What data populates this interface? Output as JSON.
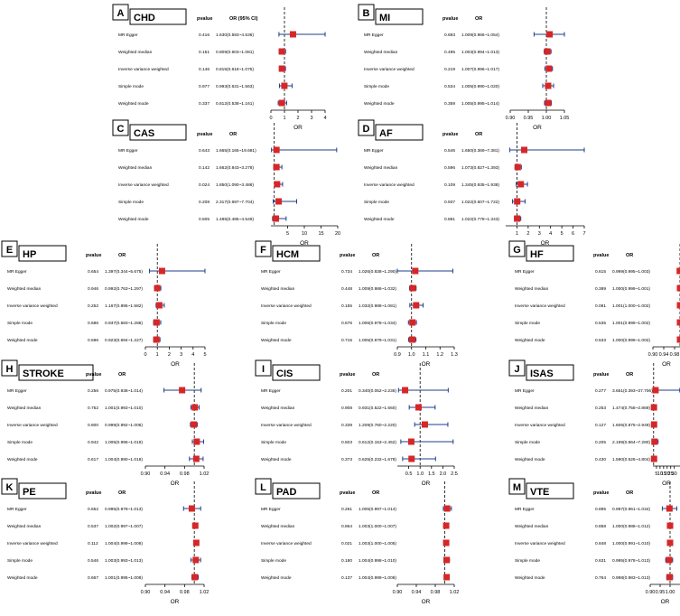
{
  "style": {
    "marker_color": "#d62728",
    "ci_color": "#1f3c88",
    "ref_line_color": "#000000",
    "box_border": "#000000"
  },
  "headers": {
    "pvalue": "pvalue",
    "or": "OR",
    "or_ci": "OR (95% CI)"
  },
  "chart_data": [
    {
      "type": "forest",
      "panel": "A",
      "title": "CHD",
      "xlabel": "OR",
      "or_header": "OR (95% CI)",
      "xlim": [
        0,
        4
      ],
      "ticks": [
        "0",
        "1",
        "2",
        "3",
        "4"
      ],
      "tick_values": [
        0,
        1,
        2,
        3,
        4
      ],
      "ref": 1,
      "rows": [
        {
          "method": "MR Egger",
          "pvalue": "0.416",
          "or_text": "1.630(0.593~4.536)",
          "or": 1.63,
          "lo": 0.593,
          "hi": 4.536
        },
        {
          "method": "Weighted median",
          "pvalue": "0.151",
          "or_text": "0.809(0.603~1.081)",
          "or": 0.809,
          "lo": 0.603,
          "hi": 1.081
        },
        {
          "method": "Inverse variance weighted",
          "pvalue": "0.146",
          "or_text": "0.815(0.618~1.075)",
          "or": 0.815,
          "lo": 0.618,
          "hi": 1.075
        },
        {
          "method": "Simple mode",
          "pvalue": "0.977",
          "or_text": "0.993(0.631~1.563)",
          "or": 0.993,
          "lo": 0.631,
          "hi": 1.563
        },
        {
          "method": "Weighted mode",
          "pvalue": "0.337",
          "or_text": "0.812(0.538~1.161)",
          "or": 0.812,
          "lo": 0.538,
          "hi": 1.161
        }
      ]
    },
    {
      "type": "forest",
      "panel": "B",
      "title": "MI",
      "xlabel": "OR",
      "or_header": "OR",
      "xlim": [
        0.9,
        1.05
      ],
      "ticks": [
        "0.90",
        "0.95",
        "1.00",
        "1.05"
      ],
      "tick_values": [
        0.9,
        0.95,
        1.0,
        1.05
      ],
      "ref": 1,
      "rows": [
        {
          "method": "MR Egger",
          "pvalue": "0.693",
          "or_text": "1.009(0.966~1.054)",
          "or": 1.009,
          "lo": 0.966,
          "hi": 1.054
        },
        {
          "method": "Weighted median",
          "pvalue": "0.495",
          "or_text": "1.003(0.994~1.013)",
          "or": 1.003,
          "lo": 0.994,
          "hi": 1.013
        },
        {
          "method": "Inverse variance weighted",
          "pvalue": "0.219",
          "or_text": "1.007(0.996~1.017)",
          "or": 1.007,
          "lo": 0.996,
          "hi": 1.017
        },
        {
          "method": "Simple mode",
          "pvalue": "0.534",
          "or_text": "1.005(0.990~1.020)",
          "or": 1.005,
          "lo": 0.99,
          "hi": 1.02
        },
        {
          "method": "Weighted mode",
          "pvalue": "0.359",
          "or_text": "1.005(0.995~1.014)",
          "or": 1.005,
          "lo": 0.995,
          "hi": 1.014
        }
      ]
    },
    {
      "type": "forest",
      "panel": "C",
      "title": "CAS",
      "xlabel": "OR",
      "or_header": "OR",
      "xlim": [
        0,
        20
      ],
      "ticks": [
        "5",
        "10",
        "15",
        "20"
      ],
      "tick_values": [
        5,
        10,
        15,
        20
      ],
      "ref": 1,
      "rows": [
        {
          "method": "MR Egger",
          "pvalue": "0.643",
          "or_text": "1.665(0.165~19.681)",
          "or": 1.665,
          "lo": 0.165,
          "hi": 19.681
        },
        {
          "method": "Weighted median",
          "pvalue": "0.142",
          "or_text": "1.662(0.843~3.278)",
          "or": 1.662,
          "lo": 0.843,
          "hi": 3.278
        },
        {
          "method": "Inverse variance weighted",
          "pvalue": "0.024",
          "or_text": "1.850(1.090~3.488)",
          "or": 1.85,
          "lo": 1.09,
          "hi": 3.488
        },
        {
          "method": "Simple mode",
          "pvalue": "0.208",
          "or_text": "2.317(0.697~7.704)",
          "or": 2.317,
          "lo": 0.697,
          "hi": 7.704
        },
        {
          "method": "Weighted mode",
          "pvalue": "0.505",
          "or_text": "1.485(0.485~4.549)",
          "or": 1.485,
          "lo": 0.485,
          "hi": 4.549
        }
      ]
    },
    {
      "type": "forest",
      "panel": "D",
      "title": "AF",
      "xlabel": "OR",
      "or_header": "OR",
      "xlim": [
        0,
        7
      ],
      "ticks": [
        "1",
        "2",
        "3",
        "4",
        "5",
        "6",
        "7"
      ],
      "tick_values": [
        1,
        2,
        3,
        4,
        5,
        6,
        7
      ],
      "ref": 1,
      "rows": [
        {
          "method": "MR Egger",
          "pvalue": "0.546",
          "or_text": "1.650(0.369~7.381)",
          "or": 1.65,
          "lo": 0.369,
          "hi": 7.381
        },
        {
          "method": "Weighted median",
          "pvalue": "0.596",
          "or_text": "1.073(0.827~1.393)",
          "or": 1.073,
          "lo": 0.827,
          "hi": 1.393
        },
        {
          "method": "Inverse variance weighted",
          "pvalue": "0.109",
          "or_text": "1.345(0.935~1.938)",
          "or": 1.345,
          "lo": 0.935,
          "hi": 1.938
        },
        {
          "method": "Simple mode",
          "pvalue": "0.937",
          "or_text": "1.022(0.607~1.722)",
          "or": 1.022,
          "lo": 0.607,
          "hi": 1.722
        },
        {
          "method": "Weighted mode",
          "pvalue": "0.881",
          "or_text": "1.022(0.778~1.343)",
          "or": 1.022,
          "lo": 0.778,
          "hi": 1.343
        }
      ]
    },
    {
      "type": "forest",
      "panel": "E",
      "title": "HP",
      "xlabel": "OR",
      "or_header": "OR",
      "xlim": [
        0,
        5
      ],
      "ticks": [
        "0",
        "1",
        "2",
        "3",
        "4",
        "5"
      ],
      "tick_values": [
        0,
        1,
        2,
        3,
        4,
        5
      ],
      "ref": 1,
      "rows": [
        {
          "method": "MR Egger",
          "pvalue": "0.654",
          "or_text": "1.397(0.344~5.675)",
          "or": 1.397,
          "lo": 0.344,
          "hi": 5.675
        },
        {
          "method": "Weighted median",
          "pvalue": "0.946",
          "or_text": "0.992(0.763~1.297)",
          "or": 0.992,
          "lo": 0.763,
          "hi": 1.297
        },
        {
          "method": "Inverse variance weighted",
          "pvalue": "0.252",
          "or_text": "1.167(0.895~1.582)",
          "or": 1.167,
          "lo": 0.895,
          "hi": 1.582
        },
        {
          "method": "Simple mode",
          "pvalue": "0.686",
          "or_text": "0.937(0.683~1.286)",
          "or": 0.937,
          "lo": 0.683,
          "hi": 1.286
        },
        {
          "method": "Weighted mode",
          "pvalue": "0.596",
          "or_text": "0.923(0.694~1.227)",
          "or": 0.923,
          "lo": 0.694,
          "hi": 1.227
        }
      ]
    },
    {
      "type": "forest",
      "panel": "F",
      "title": "HCM",
      "xlabel": "OR",
      "or_header": "OR",
      "xlim": [
        0.9,
        1.3
      ],
      "ticks": [
        "0.9",
        "1.0",
        "1.1",
        "1.2",
        "1.3"
      ],
      "tick_values": [
        0.9,
        1.0,
        1.1,
        1.2,
        1.3
      ],
      "ref": 1,
      "rows": [
        {
          "method": "MR Egger",
          "pvalue": "0.734",
          "or_text": "1.026(0.838~1.290)",
          "or": 1.026,
          "lo": 0.838,
          "hi": 1.29
        },
        {
          "method": "Weighted median",
          "pvalue": "0.448",
          "or_text": "1.009(0.986~1.032)",
          "or": 1.009,
          "lo": 0.986,
          "hi": 1.032
        },
        {
          "method": "Inverse variance weighted",
          "pvalue": "0.155",
          "or_text": "1.032(0.988~1.081)",
          "or": 1.032,
          "lo": 0.988,
          "hi": 1.081
        },
        {
          "method": "Simple mode",
          "pvalue": "0.676",
          "or_text": "1.006(0.978~1.034)",
          "or": 1.006,
          "lo": 0.978,
          "hi": 1.034
        },
        {
          "method": "Weighted mode",
          "pvalue": "0.715",
          "or_text": "1.005(0.979~1.031)",
          "or": 1.005,
          "lo": 0.979,
          "hi": 1.031
        }
      ]
    },
    {
      "type": "forest",
      "panel": "G",
      "title": "HF",
      "xlabel": "OR",
      "or_header": "OR",
      "xlim": [
        0.9,
        1.0
      ],
      "ticks": [
        "0.90",
        "0.94",
        "0.98"
      ],
      "tick_values": [
        0.9,
        0.94,
        0.98
      ],
      "ref": 1,
      "rows": [
        {
          "method": "MR Egger",
          "pvalue": "0.615",
          "or_text": "0.999(0.995~1.003)",
          "or": 0.999,
          "lo": 0.995,
          "hi": 1.003
        },
        {
          "method": "Weighted median",
          "pvalue": "0.389",
          "or_text": "1.000(0.999~1.001)",
          "or": 1.0,
          "lo": 0.999,
          "hi": 1.001
        },
        {
          "method": "Inverse variance weighted",
          "pvalue": "0.081",
          "or_text": "1.001(1.000~1.002)",
          "or": 1.001,
          "lo": 1.0,
          "hi": 1.002
        },
        {
          "method": "Simple mode",
          "pvalue": "0.535",
          "or_text": "1.001(0.999~1.002)",
          "or": 1.001,
          "lo": 0.999,
          "hi": 1.002
        },
        {
          "method": "Weighted mode",
          "pvalue": "0.533",
          "or_text": "1.000(0.999~1.002)",
          "or": 1.0,
          "lo": 0.999,
          "hi": 1.002
        }
      ]
    },
    {
      "type": "forest",
      "panel": "H",
      "title": "STROKE",
      "xlabel": "OR",
      "or_header": "OR",
      "xlim": [
        0.9,
        1.02
      ],
      "ticks": [
        "0.90",
        "0.94",
        "0.98",
        "1.02"
      ],
      "tick_values": [
        0.9,
        0.94,
        0.98,
        1.02
      ],
      "ref": 1,
      "rows": [
        {
          "method": "MR Egger",
          "pvalue": "0.256",
          "or_text": "0.975(0.938~1.014)",
          "or": 0.975,
          "lo": 0.938,
          "hi": 1.014
        },
        {
          "method": "Weighted median",
          "pvalue": "0.752",
          "or_text": "1.001(0.993~1.010)",
          "or": 1.001,
          "lo": 0.993,
          "hi": 1.01
        },
        {
          "method": "Inverse variance weighted",
          "pvalue": "0.800",
          "or_text": "0.999(0.992~1.006)",
          "or": 0.999,
          "lo": 0.992,
          "hi": 1.006
        },
        {
          "method": "Simple mode",
          "pvalue": "0.942",
          "or_text": "1.005(0.996~1.019)",
          "or": 1.005,
          "lo": 0.996,
          "hi": 1.019
        },
        {
          "method": "Weighted mode",
          "pvalue": "0.617",
          "or_text": "1.004(0.990~1.018)",
          "or": 1.004,
          "lo": 0.99,
          "hi": 1.018
        }
      ]
    },
    {
      "type": "forest",
      "panel": "I",
      "title": "CIS",
      "xlabel": "OR",
      "or_header": "OR",
      "xlim": [
        0,
        2.5
      ],
      "ticks": [
        "0.5",
        "1.0",
        "1.5",
        "2.0",
        "2.5"
      ],
      "tick_values": [
        0.5,
        1.0,
        1.5,
        2.0,
        2.5
      ],
      "ref": 1,
      "rows": [
        {
          "method": "MR Egger",
          "pvalue": "0.201",
          "or_text": "0.340(0.052~2.236)",
          "or": 0.34,
          "lo": 0.052,
          "hi": 2.236
        },
        {
          "method": "Weighted median",
          "pvalue": "0.908",
          "or_text": "0.931(0.522~1.660)",
          "or": 0.931,
          "lo": 0.522,
          "hi": 1.66
        },
        {
          "method": "Inverse variance weighted",
          "pvalue": "0.339",
          "or_text": "1.209(0.760~2.220)",
          "or": 1.209,
          "lo": 0.76,
          "hi": 2.22
        },
        {
          "method": "Simple mode",
          "pvalue": "0.503",
          "or_text": "0.612(0.153~2.452)",
          "or": 0.612,
          "lo": 0.153,
          "hi": 2.452
        },
        {
          "method": "Weighted mode",
          "pvalue": "0.373",
          "or_text": "0.625(0.232~1.678)",
          "or": 0.625,
          "lo": 0.232,
          "hi": 1.678
        }
      ]
    },
    {
      "type": "forest",
      "panel": "J",
      "title": "ISAS",
      "xlabel": "OR",
      "or_header": "OR",
      "xlim": [
        0,
        38
      ],
      "ticks": [
        "5",
        "10",
        "15",
        "20",
        "25",
        "30"
      ],
      "tick_values": [
        5,
        10,
        15,
        20,
        25,
        30
      ],
      "ref": 1,
      "rows": [
        {
          "method": "MR Egger",
          "pvalue": "0.277",
          "or_text": "3.651(0.393~37.706)",
          "or": 3.651,
          "lo": 0.393,
          "hi": 37.706
        },
        {
          "method": "Weighted median",
          "pvalue": "0.253",
          "or_text": "1.474(0.758~2.869)",
          "or": 1.474,
          "lo": 0.758,
          "hi": 2.869
        },
        {
          "method": "Inverse variance weighted",
          "pvalue": "0.127",
          "or_text": "1.606(0.875~2.949)",
          "or": 1.606,
          "lo": 0.875,
          "hi": 2.949
        },
        {
          "method": "Simple mode",
          "pvalue": "0.205",
          "or_text": "2.199(0.664~7.280)",
          "or": 2.199,
          "lo": 0.664,
          "hi": 7.28
        },
        {
          "method": "Weighted mode",
          "pvalue": "0.430",
          "or_text": "1.590(0.526~4.804)",
          "or": 1.59,
          "lo": 0.526,
          "hi": 4.804
        }
      ]
    },
    {
      "type": "forest",
      "panel": "K",
      "title": "PE",
      "xlabel": "OR",
      "or_header": "OR",
      "xlim": [
        0.9,
        1.02
      ],
      "ticks": [
        "0.90",
        "0.94",
        "0.98",
        "1.02"
      ],
      "tick_values": [
        0.9,
        0.94,
        0.98,
        1.02
      ],
      "ref": 1,
      "rows": [
        {
          "method": "MR Egger",
          "pvalue": "0.652",
          "or_text": "0.995(0.978~1.013)",
          "or": 0.995,
          "lo": 0.978,
          "hi": 1.013
        },
        {
          "method": "Weighted median",
          "pvalue": "0.537",
          "or_text": "1.002(0.997~1.007)",
          "or": 1.002,
          "lo": 0.997,
          "hi": 1.007
        },
        {
          "method": "Inverse variance weighted",
          "pvalue": "0.112",
          "or_text": "1.004(0.999~1.008)",
          "or": 1.004,
          "lo": 0.999,
          "hi": 1.008
        },
        {
          "method": "Simple mode",
          "pvalue": "0.546",
          "or_text": "1.003(0.993~1.013)",
          "or": 1.003,
          "lo": 0.993,
          "hi": 1.013
        },
        {
          "method": "Weighted mode",
          "pvalue": "0.667",
          "or_text": "1.001(0.995~1.008)",
          "or": 1.001,
          "lo": 0.995,
          "hi": 1.008
        }
      ]
    },
    {
      "type": "forest",
      "panel": "L",
      "title": "PAD",
      "xlabel": "OR",
      "or_header": "OR",
      "xlim": [
        0.9,
        1.02
      ],
      "ticks": [
        "0.90",
        "0.94",
        "0.98",
        "1.02"
      ],
      "tick_values": [
        0.9,
        0.94,
        0.98,
        1.02
      ],
      "ref": 1,
      "rows": [
        {
          "method": "MR Egger",
          "pvalue": "0.261",
          "or_text": "1.005(0.997~1.014)",
          "or": 1.005,
          "lo": 0.997,
          "hi": 1.014
        },
        {
          "method": "Weighted median",
          "pvalue": "0.864",
          "or_text": "1.003(1.000~1.007)",
          "or": 1.003,
          "lo": 1.0,
          "hi": 1.007
        },
        {
          "method": "Inverse variance weighted",
          "pvalue": "0.021",
          "or_text": "1.003(1.000~1.005)",
          "or": 1.003,
          "lo": 1.0,
          "hi": 1.005
        },
        {
          "method": "Simple mode",
          "pvalue": "0.180",
          "or_text": "1.004(0.998~1.010)",
          "or": 1.004,
          "lo": 0.998,
          "hi": 1.01
        },
        {
          "method": "Weighted mode",
          "pvalue": "0.137",
          "or_text": "1.004(0.999~1.008)",
          "or": 1.004,
          "lo": 0.999,
          "hi": 1.008
        }
      ]
    },
    {
      "type": "forest",
      "panel": "M",
      "title": "VTE",
      "xlabel": "OR",
      "or_header": "OR",
      "xlim": [
        0.9,
        1.05
      ],
      "ticks": [
        "0.90",
        "0.95",
        "1.00"
      ],
      "tick_values": [
        0.9,
        0.95,
        1.0
      ],
      "ref": 1,
      "rows": [
        {
          "method": "MR Egger",
          "pvalue": "0.895",
          "or_text": "0.997(0.961~1.034)",
          "or": 0.997,
          "lo": 0.961,
          "hi": 1.034
        },
        {
          "method": "Weighted median",
          "pvalue": "0.858",
          "or_text": "1.000(0.988~1.012)",
          "or": 1.0,
          "lo": 0.988,
          "hi": 1.012
        },
        {
          "method": "Inverse variance weighted",
          "pvalue": "0.848",
          "or_text": "1.000(0.991~1.010)",
          "or": 1.0,
          "lo": 0.991,
          "hi": 1.01
        },
        {
          "method": "Simple mode",
          "pvalue": "0.631",
          "or_text": "0.995(0.978~1.013)",
          "or": 0.995,
          "lo": 0.978,
          "hi": 1.013
        },
        {
          "method": "Weighted mode",
          "pvalue": "0.764",
          "or_text": "0.998(0.983~1.013)",
          "or": 0.998,
          "lo": 0.983,
          "hi": 1.013
        }
      ]
    }
  ]
}
